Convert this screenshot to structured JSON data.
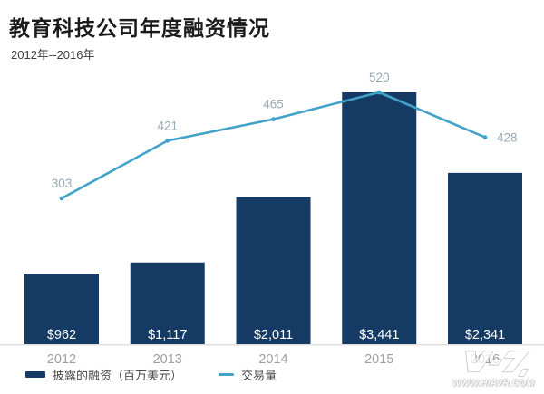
{
  "chart_data": {
    "type": "combo",
    "title": "教育科技公司年度融资情况",
    "subtitle": "2012年--2016年",
    "categories": [
      "2012",
      "2013",
      "2014",
      "2015",
      "2016"
    ],
    "series": [
      {
        "name": "披露的融资（百万美元）",
        "type": "bar",
        "values": [
          962,
          1117,
          2011,
          3441,
          2341
        ],
        "value_labels": [
          "$962",
          "$1,117",
          "$2,011",
          "$3,441",
          "$2,341"
        ],
        "color": "#153a63",
        "value_label_color": "#ffffff"
      },
      {
        "name": "交易量",
        "type": "line",
        "values": [
          303,
          421,
          465,
          520,
          428
        ],
        "color": "#42a2c8",
        "value_label_color": "#97a9b4"
      }
    ],
    "bar_axis_range": [
      0,
      3441
    ],
    "grid": false,
    "legend_position": "bottom-left",
    "x_label_color": "#9e9e9e",
    "baseline_color": "#e0e0e0"
  },
  "watermark": {
    "url": "WWW.HIAVR.COM",
    "logo": "hiavr-logo"
  }
}
